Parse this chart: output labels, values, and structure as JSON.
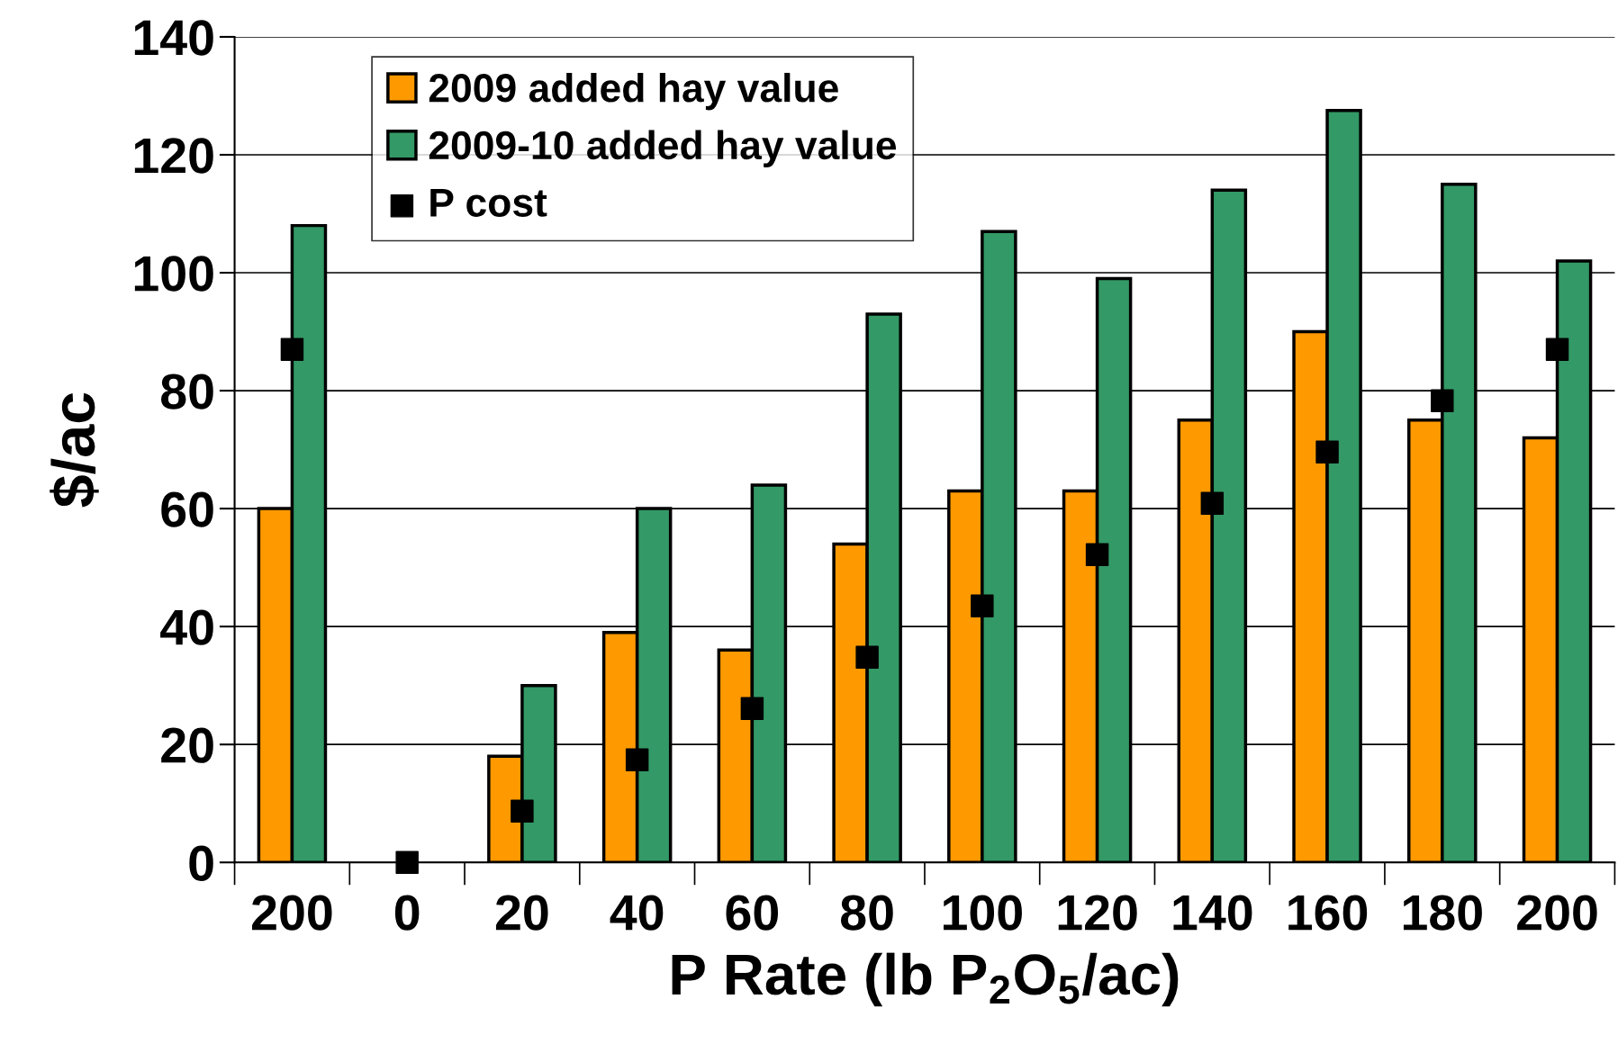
{
  "chart_data": {
    "type": "bar",
    "xlabel": "P Rate (lb P$_{2}$O$_{5}$/ac)",
    "ylabel": "$/ac",
    "categories": [
      "200",
      "0",
      "20",
      "40",
      "60",
      "80",
      "100",
      "120",
      "140",
      "160",
      "180",
      "200"
    ],
    "series": [
      {
        "name": "2009 added hay value",
        "color": "#ff9900",
        "values": [
          60,
          null,
          18,
          39,
          36,
          54,
          63,
          63,
          75,
          90,
          75,
          72
        ]
      },
      {
        "name": "2009-10 added hay value",
        "color": "#339966",
        "values": [
          108,
          null,
          30,
          60,
          64,
          93,
          107,
          99,
          114,
          127.5,
          115,
          102
        ]
      },
      {
        "name": "P cost",
        "type": "scatter",
        "color": "#000000",
        "marker": "square",
        "values": [
          87,
          0,
          8.7,
          17.4,
          26.1,
          34.8,
          43.5,
          52.2,
          60.9,
          69.6,
          78.3,
          87
        ]
      }
    ],
    "ylim": [
      0,
      140
    ],
    "yticks": [
      0,
      20,
      40,
      60,
      80,
      100,
      120,
      140
    ],
    "grid": "y",
    "legend": "top"
  }
}
